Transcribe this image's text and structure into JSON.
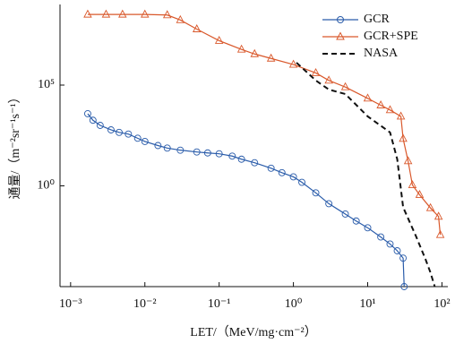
{
  "chart_data": {
    "type": "line",
    "xlabel": "LET/（MeV/mg·cm⁻²）",
    "ylabel": "通量/（m⁻²sr⁻¹s⁻¹）",
    "xscale": "log",
    "yscale": "log",
    "xlim": [
      0.00072,
      120
    ],
    "ylim": [
      1e-05,
      1000000000
    ],
    "xticks": [
      {
        "value": 0.001,
        "label": "10⁻³"
      },
      {
        "value": 0.01,
        "label": "10⁻²"
      },
      {
        "value": 0.1,
        "label": "10⁻¹"
      },
      {
        "value": 1,
        "label": "10⁰"
      },
      {
        "value": 10,
        "label": "10¹"
      },
      {
        "value": 100,
        "label": "10²"
      }
    ],
    "yticks": [
      {
        "value": 1,
        "label": "10⁰"
      },
      {
        "value": 100000,
        "label": "10⁵"
      }
    ],
    "legend": "upper right",
    "series": [
      {
        "name": "GCR",
        "color": "#2a5caa",
        "marker": "circle",
        "linestyle": "solid",
        "x": [
          0.0017,
          0.002,
          0.0025,
          0.0035,
          0.0045,
          0.006,
          0.008,
          0.01,
          0.015,
          0.02,
          0.03,
          0.05,
          0.07,
          0.1,
          0.15,
          0.2,
          0.3,
          0.5,
          0.7,
          1,
          1.3,
          2,
          3,
          5,
          7,
          10,
          15,
          20,
          25,
          30,
          31
        ],
        "values": [
          3800,
          1800,
          1000,
          600,
          450,
          370,
          230,
          160,
          100,
          75,
          59,
          48,
          43,
          39,
          30,
          21,
          14,
          7.5,
          4.5,
          2.8,
          1.5,
          0.45,
          0.13,
          0.04,
          0.018,
          0.0083,
          0.0029,
          0.0013,
          0.0006,
          0.00026,
          1e-05
        ]
      },
      {
        "name": "GCR+SPE",
        "color": "#d9582b",
        "marker": "triangle",
        "linestyle": "solid",
        "x": [
          0.0017,
          0.003,
          0.005,
          0.01,
          0.02,
          0.03,
          0.05,
          0.1,
          0.2,
          0.3,
          0.5,
          1,
          2,
          3,
          5,
          10,
          15,
          20,
          28,
          30,
          35,
          40,
          50,
          70,
          90,
          95
        ],
        "values": [
          320000000,
          320000000,
          320000000,
          320000000,
          300000000,
          170000000,
          60000000,
          16000000,
          5900000,
          3500000,
          2100000,
          1050000,
          400000,
          170000,
          80000,
          22000,
          10000,
          5800,
          2800,
          220,
          17,
          1.1,
          0.36,
          0.08,
          0.03,
          0.0037
        ]
      },
      {
        "name": "NASA",
        "color": "#111111",
        "marker": "none",
        "linestyle": "dashed",
        "x": [
          1.1,
          2,
          3,
          5,
          10,
          20,
          25,
          30,
          45,
          60,
          70,
          80
        ],
        "values": [
          1300000,
          170000,
          60000,
          36000,
          2800,
          450,
          21,
          0.087,
          0.003,
          0.00023,
          5e-05,
          1e-05
        ]
      }
    ]
  }
}
